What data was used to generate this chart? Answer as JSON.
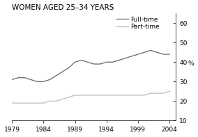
{
  "title": "WOMEN AGED 25–34 YEARS",
  "ylabel": "%",
  "xlim": [
    1979,
    2005
  ],
  "ylim": [
    10,
    65
  ],
  "yticks": [
    10,
    20,
    30,
    40,
    50,
    60
  ],
  "xticks": [
    1979,
    1984,
    1989,
    1994,
    1999,
    2004
  ],
  "full_time": {
    "label": "Full-time",
    "color": "#666666",
    "years": [
      1979,
      1980,
      1981,
      1982,
      1983,
      1984,
      1985,
      1986,
      1987,
      1988,
      1989,
      1990,
      1991,
      1992,
      1993,
      1994,
      1995,
      1996,
      1997,
      1998,
      1999,
      2000,
      2001,
      2002,
      2003,
      2004
    ],
    "values": [
      31,
      32,
      32,
      31,
      30,
      30,
      31,
      33,
      35,
      37,
      40,
      41,
      40,
      39,
      39,
      40,
      40,
      41,
      42,
      43,
      44,
      45,
      46,
      45,
      44,
      44
    ]
  },
  "part_time": {
    "label": "Part-time",
    "color": "#bbbbbb",
    "years": [
      1979,
      1980,
      1981,
      1982,
      1983,
      1984,
      1985,
      1986,
      1987,
      1988,
      1989,
      1990,
      1991,
      1992,
      1993,
      1994,
      1995,
      1996,
      1997,
      1998,
      1999,
      2000,
      2001,
      2002,
      2003,
      2004
    ],
    "values": [
      19,
      19,
      19,
      19,
      19,
      19,
      20,
      20,
      21,
      22,
      23,
      23,
      23,
      23,
      23,
      23,
      23,
      23,
      23,
      23,
      23,
      23,
      24,
      24,
      24,
      25
    ]
  },
  "title_fontsize": 7.5,
  "tick_fontsize": 6.5,
  "line_width": 0.9,
  "legend_fontsize": 6.5,
  "background_color": "#ffffff"
}
